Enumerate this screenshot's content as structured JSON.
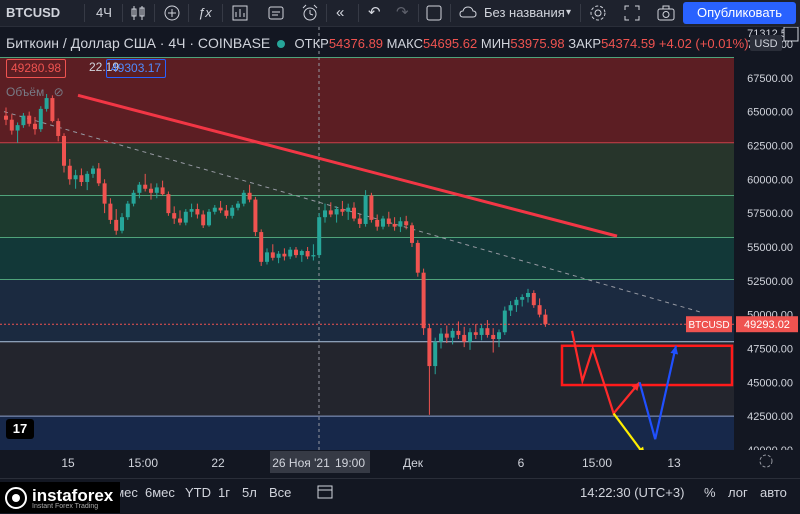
{
  "toolbar": {
    "symbol": "BTCUSD",
    "interval": "4Ч",
    "layout_name": "Без названия",
    "publish_label": "Опубликовать"
  },
  "header": {
    "title": "Биткоин / Доллар США · 4Ч · COINBASE",
    "open_label": "ОТКР",
    "open": "54376.89",
    "high_label": "МАКС",
    "high": "54695.62",
    "low_label": "МИН",
    "low": "53975.98",
    "close_label": "ЗАКР",
    "close": "54374.59",
    "change": "+4.02 (+0.01%)"
  },
  "badges": {
    "sell": "49280.98",
    "spread": "22.19",
    "buy": "49303.17"
  },
  "volume_label": "Объём",
  "currency": "USD",
  "colors": {
    "up": "#26a69a",
    "down": "#ef5350",
    "trend": "#f23645",
    "box": "#ff1a1a",
    "arrow_red": "#ff2a2a",
    "arrow_blue": "#2050ff",
    "arrow_yellow": "#ffee00"
  },
  "chart_data": {
    "type": "candlestick",
    "symbol": "BTCUSD",
    "interval": "4H",
    "ylim": [
      40000,
      71250
    ],
    "y_ticks": [
      "70000.00",
      "67500.00",
      "65000.00",
      "62500.00",
      "60000.00",
      "57500.00",
      "55000.00",
      "52500.00",
      "50000.00",
      "47500.00",
      "45000.00",
      "42500.00",
      "40000.00"
    ],
    "top_partial_tick": "71312.59",
    "x_ticks": [
      "15",
      "15:00",
      "22",
      "26 Ноя '21",
      "19:00",
      "Дек",
      "6",
      "15:00",
      "13"
    ],
    "last_price": {
      "label": "BTCUSD",
      "value": "49293.02"
    },
    "zones": [
      {
        "from": 62700,
        "to": 69000,
        "color": "#5c1e23"
      },
      {
        "from": 58800,
        "to": 62700,
        "color": "#27352b"
      },
      {
        "from": 55700,
        "to": 58800,
        "color": "#1c3a2e"
      },
      {
        "from": 52600,
        "to": 55700,
        "color": "#123838"
      },
      {
        "from": 48000,
        "to": 52600,
        "color": "#1b2a40"
      },
      {
        "from": 42500,
        "to": 48000,
        "color": "#23252d"
      },
      {
        "from": 40000,
        "to": 42500,
        "color": "#17284a"
      }
    ],
    "levels": [
      69000,
      62700,
      58800,
      55700,
      52600,
      48000,
      42500
    ],
    "trendline": {
      "from": [
        0,
        66200
      ],
      "to": [
        92,
        55800
      ]
    },
    "dashed_trend": {
      "from": [
        0,
        65000
      ],
      "to": [
        120,
        50200
      ]
    },
    "target_box": {
      "from": 44800,
      "to": 47700
    },
    "candles": [
      [
        64700,
        65300,
        64000,
        64400
      ],
      [
        64400,
        64800,
        63300,
        63600
      ],
      [
        63600,
        64200,
        62700,
        64000
      ],
      [
        64000,
        64900,
        63800,
        64700
      ],
      [
        64700,
        65000,
        63900,
        64100
      ],
      [
        64100,
        64600,
        63300,
        63700
      ],
      [
        63700,
        65400,
        63500,
        65200
      ],
      [
        65200,
        66300,
        65000,
        66000
      ],
      [
        66000,
        66200,
        64200,
        64300
      ],
      [
        64300,
        64500,
        62800,
        63200
      ],
      [
        63200,
        63400,
        60500,
        61000
      ],
      [
        61000,
        61500,
        59600,
        60000
      ],
      [
        60000,
        60700,
        59300,
        60300
      ],
      [
        60300,
        60800,
        59500,
        59800
      ],
      [
        59800,
        60600,
        59200,
        60400
      ],
      [
        60400,
        61000,
        60100,
        60800
      ],
      [
        60800,
        61200,
        59500,
        59700
      ],
      [
        59700,
        60000,
        57500,
        58200
      ],
      [
        58200,
        58600,
        56700,
        57000
      ],
      [
        57000,
        57800,
        55900,
        56200
      ],
      [
        56200,
        57500,
        56000,
        57200
      ],
      [
        57200,
        58400,
        57000,
        58200
      ],
      [
        58200,
        59200,
        58000,
        59000
      ],
      [
        59000,
        59800,
        58600,
        59600
      ],
      [
        59600,
        60400,
        59100,
        59300
      ],
      [
        59300,
        59700,
        58500,
        59000
      ],
      [
        59000,
        59700,
        58600,
        59400
      ],
      [
        59400,
        59900,
        58800,
        58900
      ],
      [
        58900,
        59100,
        57300,
        57500
      ],
      [
        57500,
        58000,
        56700,
        57100
      ],
      [
        57100,
        57700,
        56600,
        56800
      ],
      [
        56800,
        57800,
        56600,
        57600
      ],
      [
        57600,
        58200,
        57200,
        57800
      ],
      [
        57800,
        58200,
        57100,
        57400
      ],
      [
        57400,
        57700,
        56400,
        56600
      ],
      [
        56600,
        57800,
        56500,
        57600
      ],
      [
        57600,
        58100,
        57400,
        57900
      ],
      [
        57900,
        58400,
        57500,
        57700
      ],
      [
        57700,
        58100,
        57100,
        57300
      ],
      [
        57300,
        58100,
        57100,
        57900
      ],
      [
        57900,
        58400,
        57700,
        58200
      ],
      [
        58200,
        59200,
        58000,
        59000
      ],
      [
        59000,
        59600,
        58300,
        58500
      ],
      [
        58500,
        58700,
        55800,
        56100
      ],
      [
        56100,
        56300,
        53600,
        53900
      ],
      [
        53900,
        54900,
        53700,
        54600
      ],
      [
        54600,
        55200,
        54000,
        54200
      ],
      [
        54200,
        54700,
        53800,
        54500
      ],
      [
        54500,
        54900,
        54000,
        54300
      ],
      [
        54300,
        55000,
        54100,
        54800
      ],
      [
        54800,
        55000,
        54200,
        54400
      ],
      [
        54400,
        54800,
        53900,
        54700
      ],
      [
        54700,
        55000,
        54100,
        54300
      ],
      [
        54300,
        55200,
        54000,
        54400
      ],
      [
        54400,
        57500,
        54200,
        57200
      ],
      [
        57200,
        58200,
        56800,
        57700
      ],
      [
        57700,
        58300,
        57200,
        57400
      ],
      [
        57400,
        58000,
        56800,
        57800
      ],
      [
        57800,
        58400,
        57300,
        57600
      ],
      [
        57600,
        58200,
        57000,
        57900
      ],
      [
        57900,
        58300,
        56900,
        57100
      ],
      [
        57100,
        57400,
        56400,
        56700
      ],
      [
        56700,
        59200,
        56500,
        58800
      ],
      [
        58800,
        59000,
        56800,
        57000
      ],
      [
        57000,
        57400,
        56200,
        56500
      ],
      [
        56500,
        57300,
        56300,
        57100
      ],
      [
        57100,
        57600,
        56500,
        56700
      ],
      [
        56700,
        57200,
        56200,
        56500
      ],
      [
        56500,
        57200,
        56100,
        56900
      ],
      [
        56900,
        57300,
        56300,
        56600
      ],
      [
        56600,
        56800,
        55000,
        55300
      ],
      [
        55300,
        55500,
        52800,
        53100
      ],
      [
        53100,
        53400,
        48500,
        49000
      ],
      [
        49000,
        49300,
        42600,
        46200
      ],
      [
        46200,
        48300,
        45600,
        48000
      ],
      [
        48000,
        49000,
        47500,
        48600
      ],
      [
        48600,
        49200,
        47900,
        48300
      ],
      [
        48300,
        49000,
        47800,
        48800
      ],
      [
        48800,
        49500,
        48200,
        48500
      ],
      [
        48500,
        49100,
        47600,
        48000
      ],
      [
        48000,
        49000,
        47400,
        48700
      ],
      [
        48700,
        49300,
        48200,
        48500
      ],
      [
        48500,
        49300,
        48100,
        49000
      ],
      [
        49000,
        49600,
        48300,
        48500
      ],
      [
        48500,
        49000,
        47200,
        48200
      ],
      [
        48200,
        48900,
        47600,
        48700
      ],
      [
        48700,
        50600,
        48500,
        50300
      ],
      [
        50300,
        51000,
        49900,
        50700
      ],
      [
        50700,
        51300,
        50200,
        51100
      ],
      [
        51100,
        51500,
        50600,
        51300
      ],
      [
        51300,
        51900,
        50900,
        51600
      ],
      [
        51600,
        51800,
        50500,
        50700
      ],
      [
        50700,
        51200,
        49800,
        50000
      ],
      [
        50000,
        50400,
        49100,
        49293
      ]
    ],
    "projection": {
      "red_path": [
        [
          100,
          48800
        ],
        [
          102,
          45100
        ],
        [
          104,
          47500
        ],
        [
          108,
          42700
        ],
        [
          113,
          45000
        ]
      ],
      "blue_path": [
        [
          113,
          45000
        ],
        [
          116,
          40800
        ],
        [
          120,
          47700
        ]
      ],
      "yellow_path": [
        [
          108,
          42700
        ],
        [
          114,
          39600
        ]
      ]
    }
  },
  "bottom": {
    "ranges": [
      "3мес",
      "6мес",
      "YTD",
      "1г",
      "5л",
      "Все"
    ],
    "time": "14:22:30 (UTC+3)",
    "percent": "%",
    "log": "лог",
    "auto": "авто",
    "watermark": "instaforex",
    "watermark_sub": "Instant Forex Trading"
  },
  "tv_logo": "17"
}
